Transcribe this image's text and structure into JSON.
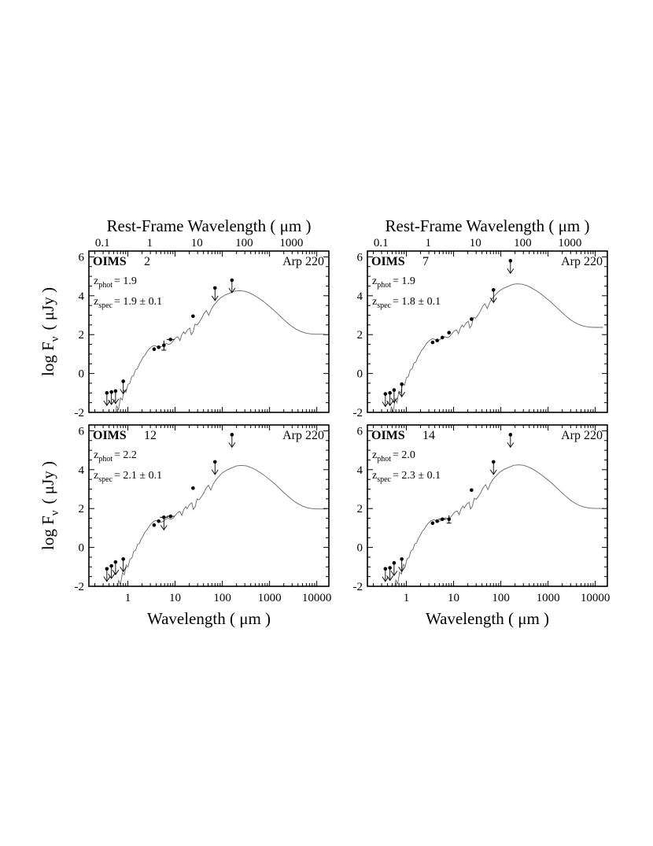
{
  "axes": {
    "xlabel": "Wavelength ( μm )",
    "rest_xlabel": "Rest-Frame Wavelength ( μm )",
    "ylabel_main": "log F",
    "ylabel_sub": "ν",
    "ylabel_unit": "( μJy )",
    "x_ticks": [
      {
        "value": 1,
        "label": "1"
      },
      {
        "value": 10,
        "label": "10"
      },
      {
        "value": 100,
        "label": "100"
      },
      {
        "value": 1000,
        "label": "1000"
      },
      {
        "value": 10000,
        "label": "10000"
      }
    ],
    "rest_x_ticks": [
      {
        "value": 0.1,
        "label": "0.1"
      },
      {
        "value": 1,
        "label": "1"
      },
      {
        "value": 10,
        "label": "10"
      },
      {
        "value": 100,
        "label": "100"
      },
      {
        "value": 1000,
        "label": "1000"
      }
    ],
    "y_ticks": [
      {
        "value": -2,
        "label": "-2"
      },
      {
        "value": 0,
        "label": "0"
      },
      {
        "value": 2,
        "label": "2"
      },
      {
        "value": 4,
        "label": "4"
      },
      {
        "value": 6,
        "label": "6"
      }
    ],
    "xlim": [
      0.15,
      18000
    ],
    "ylim": [
      -2,
      6.3
    ]
  },
  "chart_data": [
    {
      "type": "scatter",
      "panel": "top-left",
      "name_bold": "OIMS",
      "name_num": "2",
      "template": "Arp 220",
      "zphot_label": "z",
      "zphot_sub": "phot",
      "zphot_value": "= 1.9",
      "zspec_label": "z",
      "zspec_sub": "spec",
      "zspec_value": "= 1.9 ± 0.1",
      "z": 1.9,
      "points": [
        {
          "x": 0.36,
          "y": -1.0,
          "upper_limit": true
        },
        {
          "x": 0.45,
          "y": -0.95,
          "upper_limit": true
        },
        {
          "x": 0.55,
          "y": -0.9,
          "upper_limit": true
        },
        {
          "x": 0.8,
          "y": -0.4,
          "upper_limit": true
        },
        {
          "x": 3.6,
          "y": 1.25
        },
        {
          "x": 4.5,
          "y": 1.35
        },
        {
          "x": 5.8,
          "y": 1.45,
          "yerr": 0.25
        },
        {
          "x": 8.0,
          "y": 1.75,
          "xerr": true
        },
        {
          "x": 24,
          "y": 2.95
        },
        {
          "x": 70,
          "y": 4.4,
          "upper_limit": true
        },
        {
          "x": 160,
          "y": 4.8,
          "upper_limit": true
        }
      ]
    },
    {
      "type": "scatter",
      "panel": "top-right",
      "name_bold": "OIMS",
      "name_num": "7",
      "template": "Arp 220",
      "zphot_label": "z",
      "zphot_sub": "phot",
      "zphot_value": "= 1.9",
      "zspec_label": "z",
      "zspec_sub": "spec",
      "zspec_value": "= 1.8 ± 0.1",
      "z": 1.9,
      "points": [
        {
          "x": 0.36,
          "y": -1.05,
          "upper_limit": true
        },
        {
          "x": 0.45,
          "y": -1.0,
          "upper_limit": true
        },
        {
          "x": 0.55,
          "y": -0.85,
          "upper_limit": true
        },
        {
          "x": 0.8,
          "y": -0.55,
          "upper_limit": true
        },
        {
          "x": 3.6,
          "y": 1.6
        },
        {
          "x": 4.5,
          "y": 1.7
        },
        {
          "x": 5.8,
          "y": 1.85
        },
        {
          "x": 8.0,
          "y": 2.1
        },
        {
          "x": 24,
          "y": 2.8
        },
        {
          "x": 70,
          "y": 4.3,
          "upper_limit": true
        },
        {
          "x": 160,
          "y": 5.8,
          "upper_limit": true
        }
      ]
    },
    {
      "type": "scatter",
      "panel": "bottom-left",
      "name_bold": "OIMS",
      "name_num": "12",
      "template": "Arp 220",
      "zphot_label": "z",
      "zphot_sub": "phot",
      "zphot_value": "= 2.2",
      "zspec_label": "z",
      "zspec_sub": "spec",
      "zspec_value": "= 2.1 ± 0.1",
      "z": 2.2,
      "points": [
        {
          "x": 0.36,
          "y": -1.1,
          "upper_limit": true
        },
        {
          "x": 0.45,
          "y": -0.95,
          "upper_limit": true
        },
        {
          "x": 0.55,
          "y": -0.75,
          "upper_limit": true
        },
        {
          "x": 0.8,
          "y": -0.6,
          "upper_limit": true
        },
        {
          "x": 3.6,
          "y": 1.15
        },
        {
          "x": 4.5,
          "y": 1.35
        },
        {
          "x": 5.8,
          "y": 1.55,
          "upper_limit": true,
          "xerr": true
        },
        {
          "x": 8.0,
          "y": 1.6,
          "xerr": true
        },
        {
          "x": 24,
          "y": 3.05
        },
        {
          "x": 70,
          "y": 4.4,
          "upper_limit": true
        },
        {
          "x": 160,
          "y": 5.8,
          "upper_limit": true
        }
      ]
    },
    {
      "type": "scatter",
      "panel": "bottom-right",
      "name_bold": "OIMS",
      "name_num": "14",
      "template": "Arp 220",
      "zphot_label": "z",
      "zphot_sub": "phot",
      "zphot_value": "= 2.0",
      "zspec_label": "z",
      "zspec_sub": "spec",
      "zspec_value": "= 2.3 ± 0.1",
      "z": 2.0,
      "points": [
        {
          "x": 0.36,
          "y": -1.1,
          "upper_limit": true
        },
        {
          "x": 0.45,
          "y": -1.05,
          "upper_limit": true
        },
        {
          "x": 0.55,
          "y": -0.8,
          "upper_limit": true
        },
        {
          "x": 0.8,
          "y": -0.6,
          "upper_limit": true
        },
        {
          "x": 3.6,
          "y": 1.25
        },
        {
          "x": 4.5,
          "y": 1.35
        },
        {
          "x": 5.8,
          "y": 1.45,
          "xerr": true
        },
        {
          "x": 8.0,
          "y": 1.45,
          "yerr": 0.2
        },
        {
          "x": 24,
          "y": 2.95
        },
        {
          "x": 70,
          "y": 4.4,
          "upper_limit": true
        },
        {
          "x": 160,
          "y": 5.8,
          "upper_limit": true
        }
      ]
    }
  ]
}
